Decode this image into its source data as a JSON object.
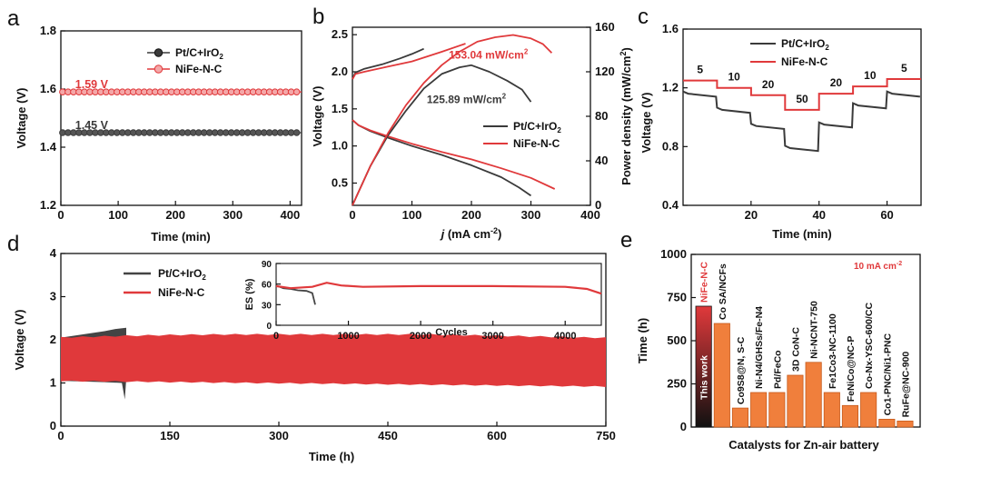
{
  "panel_letters": {
    "a": "a",
    "b": "b",
    "c": "c",
    "d": "d",
    "e": "e"
  },
  "colors": {
    "ptc": "#3a3a3a",
    "nife": "#e0393b",
    "bar": "#f07f3c",
    "bar_dark": "#1a1a1a",
    "gray_fill": "#444444"
  },
  "chart_data": [
    {
      "id": "a",
      "type": "line",
      "title": "",
      "xlabel": "Time (min)",
      "ylabel": "Voltage (V)",
      "xlim": [
        0,
        420
      ],
      "ylim": [
        1.2,
        1.8
      ],
      "xticks": [
        0,
        100,
        200,
        300,
        400
      ],
      "yticks": [
        1.2,
        1.4,
        1.6,
        1.8
      ],
      "ytick_labels": [
        "1.2",
        "1.4",
        "1.6",
        "1.8"
      ],
      "series": [
        {
          "name": "Pt/C+IrO",
          "sub": "2",
          "color": "#3a3a3a",
          "value": 1.45,
          "marker": "circle"
        },
        {
          "name": "NiFe-N-C",
          "sub": "",
          "color": "#e0393b",
          "value": 1.59,
          "marker": "circle"
        }
      ],
      "annotations": [
        {
          "text": "1.59 V",
          "x": 25,
          "y": 1.6,
          "color": "#e0393b"
        },
        {
          "text": "1.45 V",
          "x": 25,
          "y": 1.46,
          "color": "#3a3a3a"
        }
      ]
    },
    {
      "id": "b",
      "type": "line",
      "xlabel_j": "j",
      "xlabel_rest": " (mA cm",
      "xlabel_sup": "-2",
      "xlabel_end": ")",
      "ylabel": "Voltage (V)",
      "ylabel2_main": "Power density (mW/cm",
      "ylabel2_sup": "2",
      "ylabel2_end": ")",
      "xlim": [
        0,
        400
      ],
      "ylim": [
        0.2,
        2.6
      ],
      "y2lim": [
        0,
        160
      ],
      "xticks": [
        0,
        100,
        200,
        300,
        400
      ],
      "yticks": [
        0.5,
        1.0,
        1.5,
        2.0,
        2.5
      ],
      "ytick_labels": [
        "0.5",
        "1.0",
        "1.5",
        "2.0",
        "2.5"
      ],
      "y2ticks": [
        0,
        40,
        80,
        120,
        160
      ],
      "series": [
        {
          "name": "Pt/C charge",
          "color": "#3a3a3a",
          "points": [
            [
              0,
              1.9
            ],
            [
              5,
              1.99
            ],
            [
              20,
              2.04
            ],
            [
              50,
              2.1
            ],
            [
              80,
              2.18
            ],
            [
              100,
              2.24
            ],
            [
              120,
              2.31
            ]
          ]
        },
        {
          "name": "NiFe-N-C charge",
          "color": "#e0393b",
          "points": [
            [
              0,
              1.9
            ],
            [
              5,
              1.97
            ],
            [
              20,
              2.0
            ],
            [
              60,
              2.07
            ],
            [
              100,
              2.14
            ],
            [
              150,
              2.27
            ],
            [
              190,
              2.38
            ]
          ]
        },
        {
          "name": "Pt/C discharge",
          "color": "#3a3a3a",
          "points": [
            [
              0,
              1.35
            ],
            [
              10,
              1.28
            ],
            [
              30,
              1.2
            ],
            [
              60,
              1.11
            ],
            [
              100,
              1.0
            ],
            [
              150,
              0.88
            ],
            [
              200,
              0.74
            ],
            [
              250,
              0.58
            ],
            [
              280,
              0.44
            ],
            [
              300,
              0.33
            ]
          ]
        },
        {
          "name": "NiFe-N-C discharge",
          "color": "#e0393b",
          "points": [
            [
              0,
              1.35
            ],
            [
              10,
              1.28
            ],
            [
              30,
              1.21
            ],
            [
              60,
              1.13
            ],
            [
              100,
              1.03
            ],
            [
              150,
              0.92
            ],
            [
              200,
              0.82
            ],
            [
              250,
              0.7
            ],
            [
              300,
              0.57
            ],
            [
              340,
              0.42
            ]
          ]
        },
        {
          "name": "Pt/C power",
          "color": "#3a3a3a",
          "axis": "y2",
          "points": [
            [
              0,
              0
            ],
            [
              30,
              35
            ],
            [
              60,
              63
            ],
            [
              90,
              85
            ],
            [
              120,
              105
            ],
            [
              150,
              118
            ],
            [
              180,
              124
            ],
            [
              200,
              125.89
            ],
            [
              230,
              120
            ],
            [
              260,
              112
            ],
            [
              285,
              104
            ],
            [
              300,
              93
            ]
          ]
        },
        {
          "name": "NiFe-N-C power",
          "color": "#e0393b",
          "axis": "y2",
          "points": [
            [
              0,
              0
            ],
            [
              30,
              35
            ],
            [
              60,
              65
            ],
            [
              90,
              90
            ],
            [
              120,
              110
            ],
            [
              150,
              126
            ],
            [
              180,
              138
            ],
            [
              210,
              147
            ],
            [
              240,
              151
            ],
            [
              270,
              153.04
            ],
            [
              300,
              150
            ],
            [
              320,
              145
            ],
            [
              335,
              137
            ]
          ]
        }
      ],
      "legend": [
        {
          "name": "Pt/C+IrO",
          "sub": "2",
          "color": "#3a3a3a"
        },
        {
          "name": "NiFe-N-C",
          "sub": "",
          "color": "#e0393b"
        }
      ],
      "annotations": [
        {
          "text": "153.04 mW/cm",
          "sup": "2",
          "x": 162,
          "y2": 132,
          "color": "#e0393b"
        },
        {
          "text": "125.89 mW/cm",
          "sup": "2",
          "x": 125,
          "y2": 92,
          "color": "#3a3a3a"
        }
      ]
    },
    {
      "id": "c",
      "type": "line",
      "xlabel": "Time (min)",
      "ylabel": "Voltage (V)",
      "xlim": [
        0,
        70
      ],
      "ylim": [
        0.4,
        1.6
      ],
      "xticks": [
        20,
        40,
        60
      ],
      "yticks": [
        0.4,
        0.8,
        1.2,
        1.6
      ],
      "ytick_labels": [
        "0.4",
        "0.8",
        "1.2",
        "1.6"
      ],
      "current_steps": [
        "5",
        "10",
        "20",
        "50",
        "20",
        "10",
        "5"
      ],
      "series": [
        {
          "name": "Pt/C+IrO",
          "sub": "2",
          "color": "#3a3a3a",
          "steps": [
            1.16,
            1.05,
            0.94,
            0.79,
            0.95,
            1.08,
            1.16
          ]
        },
        {
          "name": "NiFe-N-C",
          "sub": "",
          "color": "#e0393b",
          "steps": [
            1.25,
            1.2,
            1.15,
            1.05,
            1.16,
            1.21,
            1.26
          ]
        }
      ]
    },
    {
      "id": "d",
      "type": "area",
      "xlabel": "Time (h)",
      "ylabel": "Voltage (V)",
      "xlim": [
        0,
        750
      ],
      "ylim": [
        0,
        4
      ],
      "xticks": [
        0,
        150,
        300,
        450,
        600,
        750
      ],
      "yticks": [
        0,
        1,
        2,
        3,
        4
      ],
      "series": [
        {
          "name": "Pt/C+IrO",
          "sub": "2",
          "color": "#444444",
          "x_end": 90,
          "upper": [
            2.05,
            2.28
          ],
          "lower": [
            1.05,
            0.62
          ]
        },
        {
          "name": "NiFe-N-C",
          "sub": "",
          "color": "#e0393b",
          "x_end": 750,
          "upper": [
            2.05,
            2.12
          ],
          "lower": [
            1.05,
            0.92
          ]
        }
      ],
      "inset": {
        "xlabel": "Cycles",
        "ylabel": "ES (%)",
        "xlim": [
          0,
          4500
        ],
        "ylim": [
          0,
          90
        ],
        "xticks": [
          0,
          1000,
          2000,
          3000,
          4000
        ],
        "yticks": [
          0,
          30,
          60,
          90
        ],
        "ytick_labels": [
          "0",
          "30",
          "60",
          "90"
        ],
        "series": [
          {
            "name": "Pt/C+IrO2",
            "color": "#444444",
            "points": [
              [
                0,
                58
              ],
              [
                100,
                54
              ],
              [
                200,
                53
              ],
              [
                300,
                51
              ],
              [
                420,
                50
              ],
              [
                500,
                47
              ],
              [
                540,
                30
              ]
            ]
          },
          {
            "name": "NiFe-N-C",
            "color": "#e0393b",
            "points": [
              [
                0,
                57
              ],
              [
                200,
                54
              ],
              [
                500,
                56
              ],
              [
                700,
                62
              ],
              [
                900,
                58
              ],
              [
                1200,
                56
              ],
              [
                2000,
                57
              ],
              [
                3000,
                57
              ],
              [
                4000,
                56
              ],
              [
                4300,
                53
              ],
              [
                4500,
                46
              ]
            ]
          }
        ]
      }
    },
    {
      "id": "e",
      "type": "bar",
      "xlabel": "Catalysts for Zn-air battery",
      "ylabel": "Time (h)",
      "ylim": [
        0,
        1000
      ],
      "yticks": [
        0,
        250,
        500,
        750,
        1000
      ],
      "note": "10 mA cm",
      "note_sup": "-2",
      "highlight_label": "This work",
      "categories": [
        "NiFe-N-C",
        "Co SA/NCFs",
        "Co9S8@N, S-C",
        "Ni-N4/GHSs/Fe-N4",
        "Pd/FeCo",
        "3D CoN-C",
        "Ni-NCNT-750",
        "Fe1Co3-NC-1100",
        "FeNiCo@NC-P",
        "Co-Nx-YSC-600/CC",
        "Co1-PNC/Ni1-PNC",
        "RuFe@NC-900"
      ],
      "values": [
        700,
        600,
        110,
        200,
        200,
        300,
        375,
        200,
        125,
        200,
        45,
        35
      ]
    }
  ]
}
